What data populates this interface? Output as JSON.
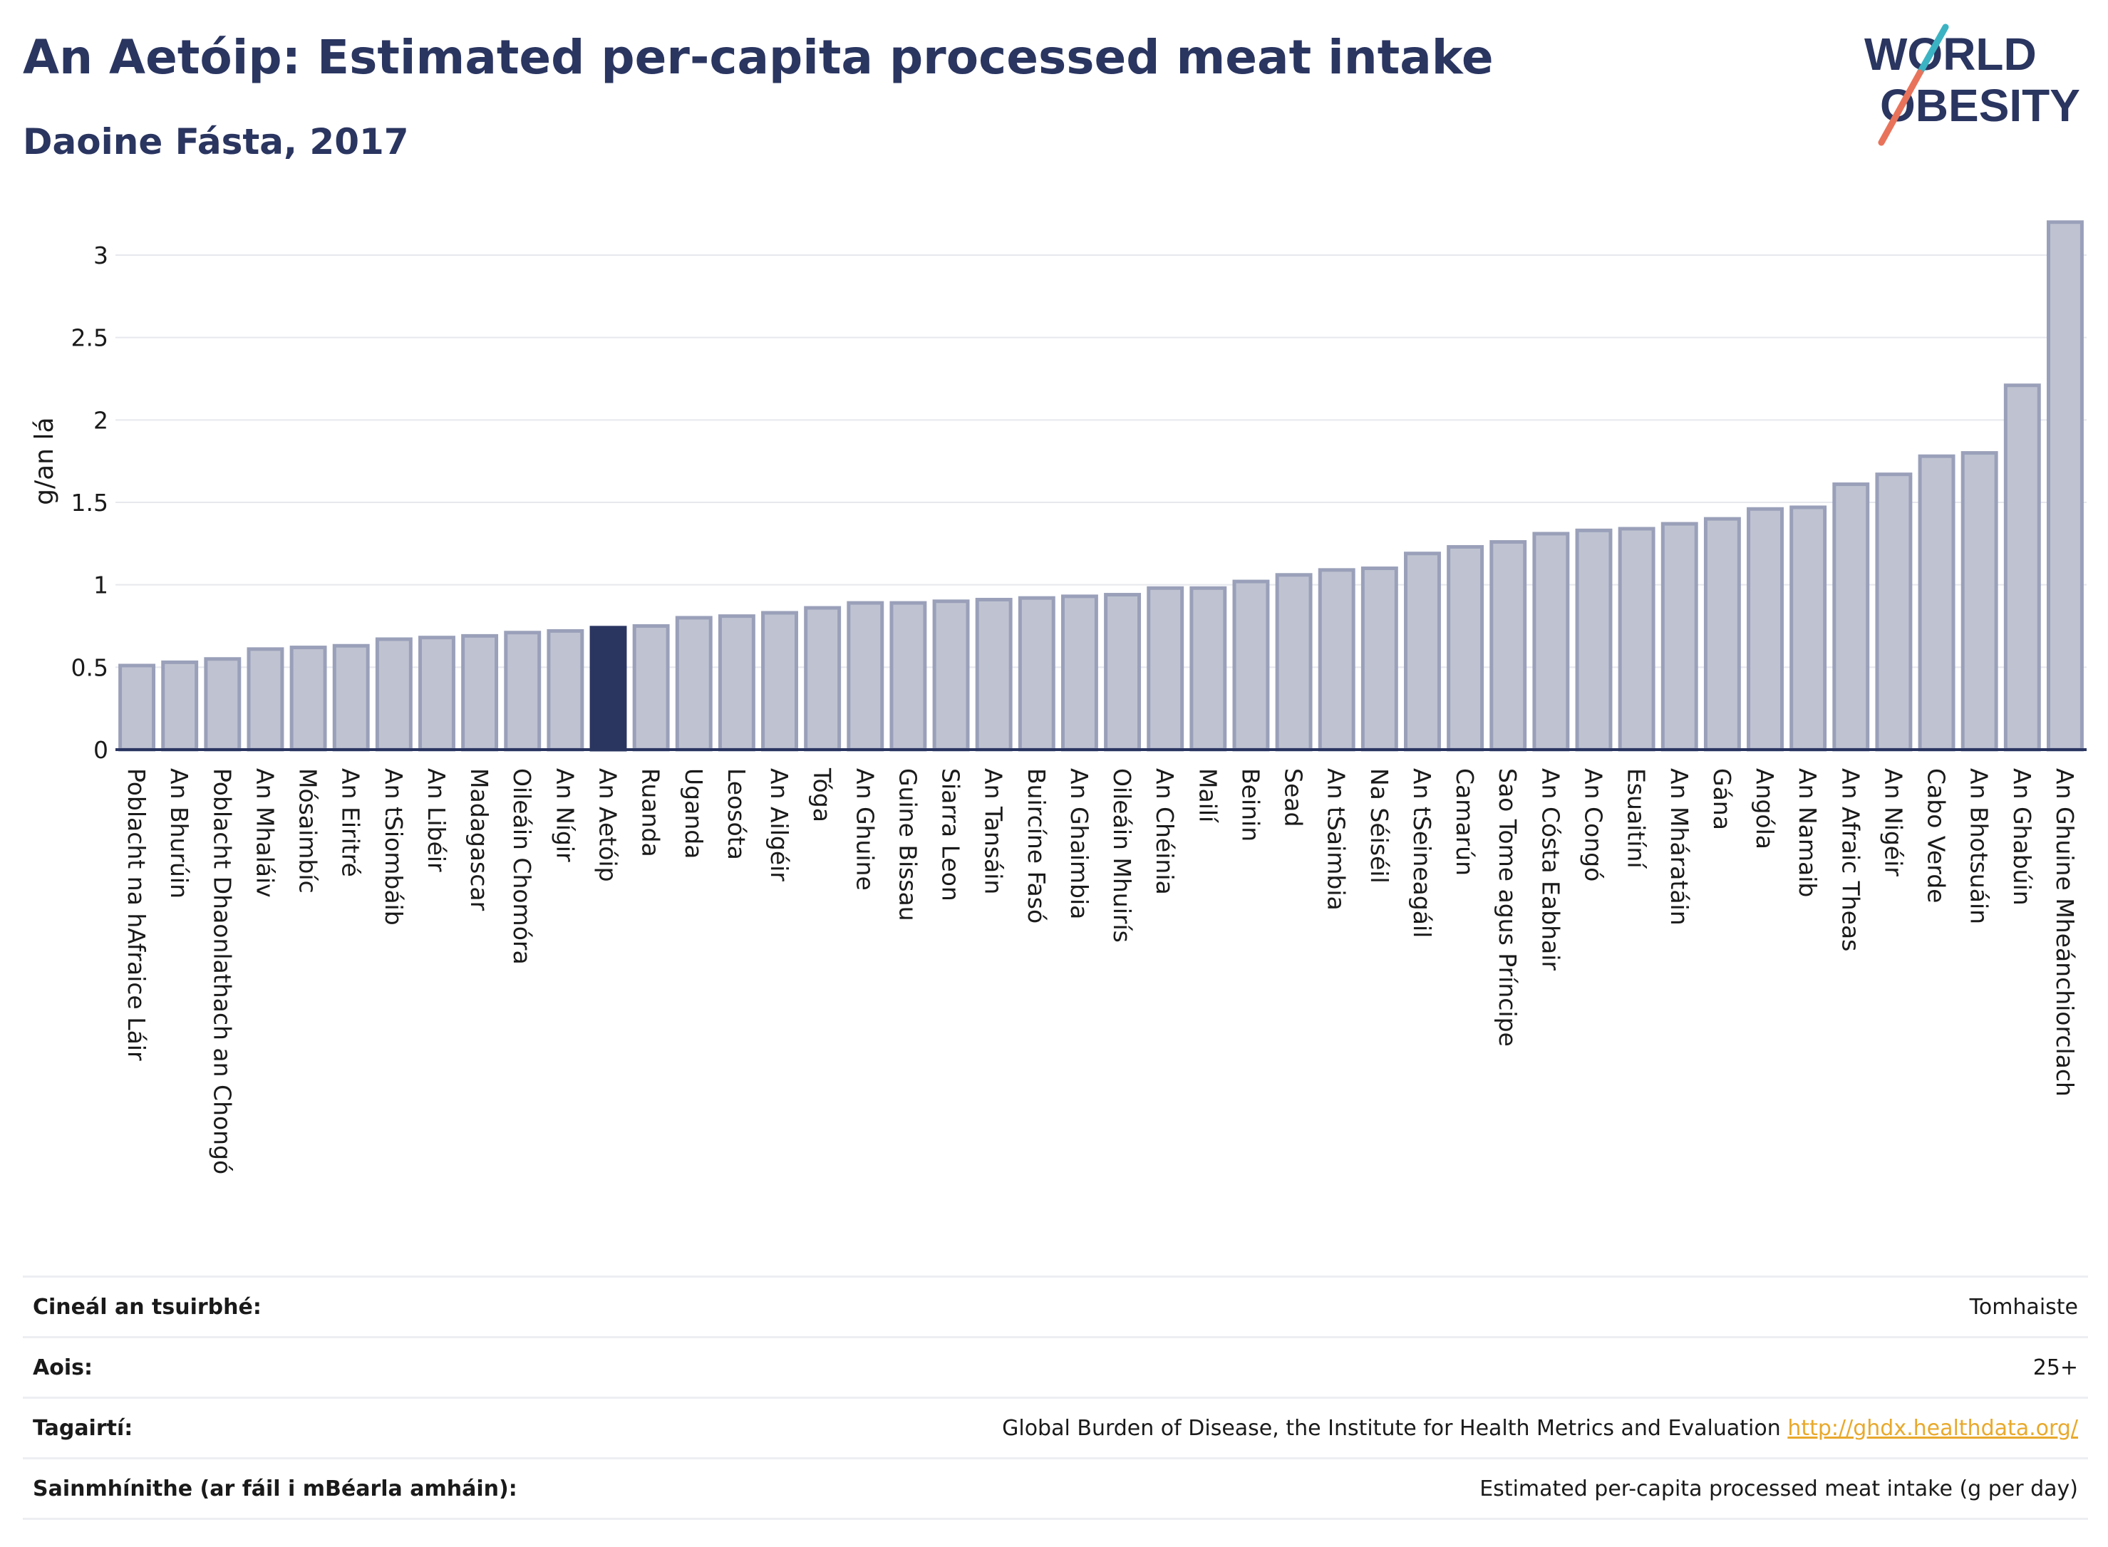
{
  "header": {
    "title": "An Aetóip: Estimated per-capita processed meat intake",
    "subtitle": "Daoine Fásta, 2017"
  },
  "logo": {
    "line1": "WORLD",
    "line2": "OBESITY",
    "colors": {
      "text": "#2a3560",
      "accent_teal": "#3bb3c3",
      "accent_coral": "#e8735a"
    }
  },
  "colors": {
    "bar_fill": "#bfc3d1",
    "bar_stroke": "#9aa0b9",
    "highlight_fill": "#2a3560",
    "axis": "#2a3560",
    "grid": "#e6e8ee"
  },
  "chart_data": {
    "type": "bar",
    "ylabel": "g/an lá",
    "xlabel": "",
    "ylim": [
      0,
      3.3
    ],
    "yticks": [
      0,
      0.5,
      1,
      1.5,
      2,
      2.5,
      3
    ],
    "ytick_labels": [
      "0",
      "0.5",
      "1",
      "1.5",
      "2",
      "2.5",
      "3"
    ],
    "grid": true,
    "highlight": "An Aetóip",
    "categories": [
      "Poblacht na hAfraice Láir",
      "An Bhurúin",
      "Poblacht Dhaonlathach an Chongó",
      "An Mhaláiv",
      "Mósaimbíc",
      "An Eiritré",
      "An tSiombáib",
      "An Libéir",
      "Madagascar",
      "Oileáin Chomóra",
      "An Nígir",
      "An Aetóip",
      "Ruanda",
      "Uganda",
      "Leosóta",
      "An Ailgéir",
      "Tóga",
      "An Ghuine",
      "Guine Bissau",
      "Siarra Leon",
      "An Tansáin",
      "Buircíne Fasó",
      "An Ghaimbia",
      "Oileáin Mhuirís",
      "An Chéinia",
      "Mailí",
      "Beinin",
      "Sead",
      "An tSaimbia",
      "Na Séiséil",
      "An tSeineagáil",
      "Camarún",
      "Sao Tome agus Príncipe",
      "An Cósta Eabhair",
      "An Congó",
      "Esuaitíní",
      "An Mháratáin",
      "Gána",
      "Angóla",
      "An Namaib",
      "An Afraic Theas",
      "An Nigéir",
      "Cabo Verde",
      "An Bhotsuáin",
      "An Ghabúin",
      "An Ghuine Mheánchiorclach"
    ],
    "values": [
      0.51,
      0.53,
      0.55,
      0.61,
      0.62,
      0.63,
      0.67,
      0.68,
      0.69,
      0.71,
      0.72,
      0.74,
      0.75,
      0.8,
      0.81,
      0.83,
      0.86,
      0.89,
      0.89,
      0.9,
      0.91,
      0.92,
      0.93,
      0.94,
      0.98,
      0.98,
      1.02,
      1.06,
      1.09,
      1.1,
      1.19,
      1.23,
      1.26,
      1.31,
      1.33,
      1.34,
      1.37,
      1.4,
      1.46,
      1.47,
      1.61,
      1.67,
      1.78,
      1.8,
      2.21,
      3.2
    ]
  },
  "info_table": [
    {
      "label": "Cineál an tsuirbhé:",
      "value": "Tomhaiste"
    },
    {
      "label": "Aois:",
      "value": "25+"
    },
    {
      "label": "Tagairtí:",
      "value": "Global Burden of Disease, the Institute for Health Metrics and Evaluation",
      "link": "http://ghdx.healthdata.org/"
    },
    {
      "label": "Sainmhínithe (ar fáil i mBéarla amháin):",
      "value": "Estimated per-capita processed meat intake (g per day)"
    }
  ]
}
